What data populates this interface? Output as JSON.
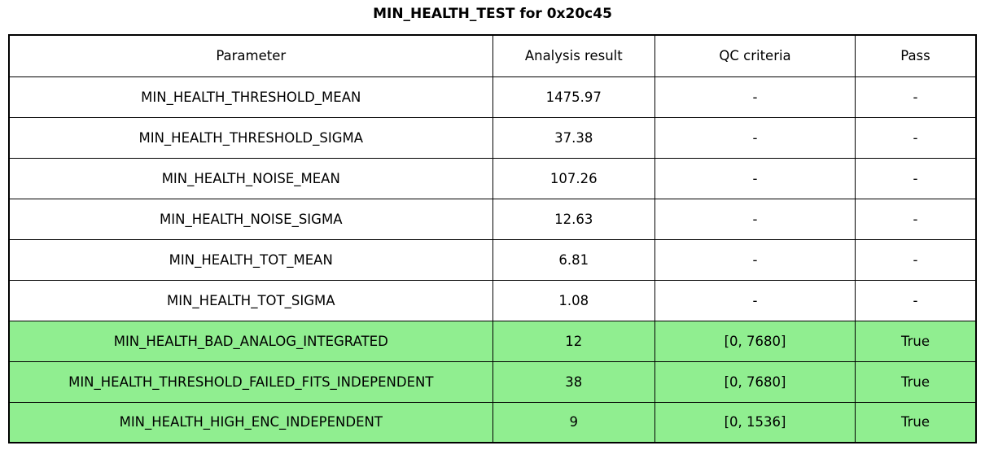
{
  "title": "MIN_HEALTH_TEST for 0x20c45",
  "colors": {
    "pass_green": "#90EE90",
    "border": "#000000",
    "background": "#ffffff",
    "text": "#000000"
  },
  "table": {
    "headers": [
      "Parameter",
      "Analysis result",
      "QC criteria",
      "Pass"
    ],
    "rows": [
      {
        "parameter": "MIN_HEALTH_THRESHOLD_MEAN",
        "result": "1475.97",
        "qc": "-",
        "pass": "-",
        "highlight": false
      },
      {
        "parameter": "MIN_HEALTH_THRESHOLD_SIGMA",
        "result": "37.38",
        "qc": "-",
        "pass": "-",
        "highlight": false
      },
      {
        "parameter": "MIN_HEALTH_NOISE_MEAN",
        "result": "107.26",
        "qc": "-",
        "pass": "-",
        "highlight": false
      },
      {
        "parameter": "MIN_HEALTH_NOISE_SIGMA",
        "result": "12.63",
        "qc": "-",
        "pass": "-",
        "highlight": false
      },
      {
        "parameter": "MIN_HEALTH_TOT_MEAN",
        "result": "6.81",
        "qc": "-",
        "pass": "-",
        "highlight": false
      },
      {
        "parameter": "MIN_HEALTH_TOT_SIGMA",
        "result": "1.08",
        "qc": "-",
        "pass": "-",
        "highlight": false
      },
      {
        "parameter": "MIN_HEALTH_BAD_ANALOG_INTEGRATED",
        "result": "12",
        "qc": "[0, 7680]",
        "pass": "True",
        "highlight": true
      },
      {
        "parameter": "MIN_HEALTH_THRESHOLD_FAILED_FITS_INDEPENDENT",
        "result": "38",
        "qc": "[0, 7680]",
        "pass": "True",
        "highlight": true
      },
      {
        "parameter": "MIN_HEALTH_HIGH_ENC_INDEPENDENT",
        "result": "9",
        "qc": "[0, 1536]",
        "pass": "True",
        "highlight": true
      }
    ]
  }
}
